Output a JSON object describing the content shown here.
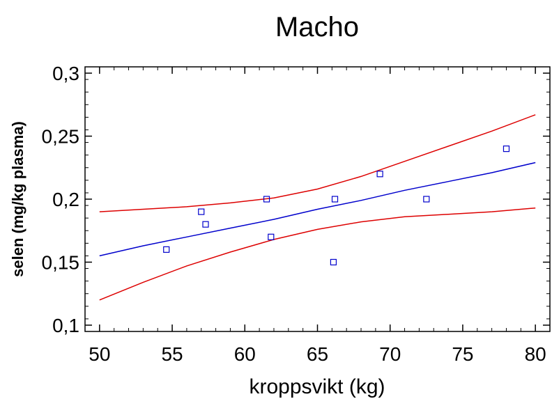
{
  "chart_data": {
    "type": "scatter",
    "title": "Macho",
    "xlabel": "kroppsvikt (kg)",
    "ylabel": "selen (mg/kg plasma)",
    "xlim": [
      49,
      81
    ],
    "ylim": [
      0.095,
      0.305
    ],
    "x_ticks": [
      50,
      55,
      60,
      65,
      70,
      75,
      80
    ],
    "x_tick_labels": [
      "50",
      "55",
      "60",
      "65",
      "70",
      "75",
      "80"
    ],
    "y_ticks": [
      0.1,
      0.15,
      0.2,
      0.25,
      0.3
    ],
    "y_tick_labels": [
      "0,1",
      "0,15",
      "0,2",
      "0,25",
      "0,3"
    ],
    "grid": false,
    "legend": "none",
    "series": [
      {
        "kind": "points",
        "color": "#0000cc",
        "marker": "square",
        "x": [
          54.6,
          57.0,
          57.3,
          61.5,
          61.8,
          66.1,
          66.2,
          69.3,
          72.5,
          78.0
        ],
        "y": [
          0.16,
          0.19,
          0.18,
          0.2,
          0.17,
          0.15,
          0.2,
          0.22,
          0.2,
          0.24
        ]
      },
      {
        "kind": "line",
        "color": "#0000cc",
        "x": [
          50,
          53,
          56,
          59,
          62,
          65,
          68,
          71,
          74,
          77,
          80
        ],
        "y": [
          0.155,
          0.163,
          0.17,
          0.177,
          0.184,
          0.192,
          0.199,
          0.207,
          0.214,
          0.221,
          0.229
        ]
      },
      {
        "kind": "line",
        "color": "#dd0000",
        "x": [
          50,
          53,
          56,
          59,
          62,
          65,
          68,
          71,
          74,
          77,
          80
        ],
        "y": [
          0.19,
          0.192,
          0.194,
          0.197,
          0.201,
          0.208,
          0.218,
          0.23,
          0.242,
          0.254,
          0.267
        ]
      },
      {
        "kind": "line",
        "color": "#dd0000",
        "x": [
          50,
          53,
          56,
          59,
          62,
          65,
          68,
          71,
          74,
          77,
          80
        ],
        "y": [
          0.12,
          0.134,
          0.147,
          0.158,
          0.168,
          0.176,
          0.182,
          0.186,
          0.188,
          0.19,
          0.193
        ]
      }
    ]
  }
}
